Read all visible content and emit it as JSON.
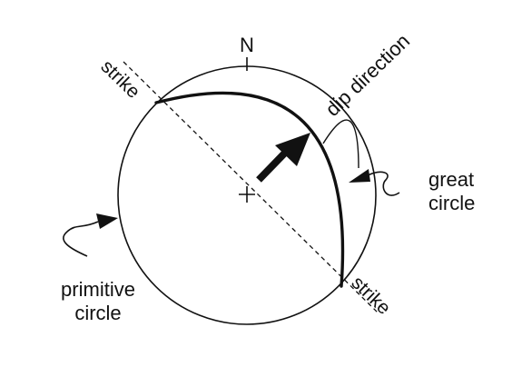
{
  "diagram": {
    "north_label": "N",
    "strike_label_upper": "strike",
    "strike_label_lower": "strike",
    "dip_direction_label": "dip direction",
    "great_circle_label": [
      "great",
      "circle"
    ],
    "primitive_circle_label": [
      "primitive",
      "circle"
    ]
  },
  "colors": {
    "ink": "#111111",
    "background": "#ffffff"
  }
}
